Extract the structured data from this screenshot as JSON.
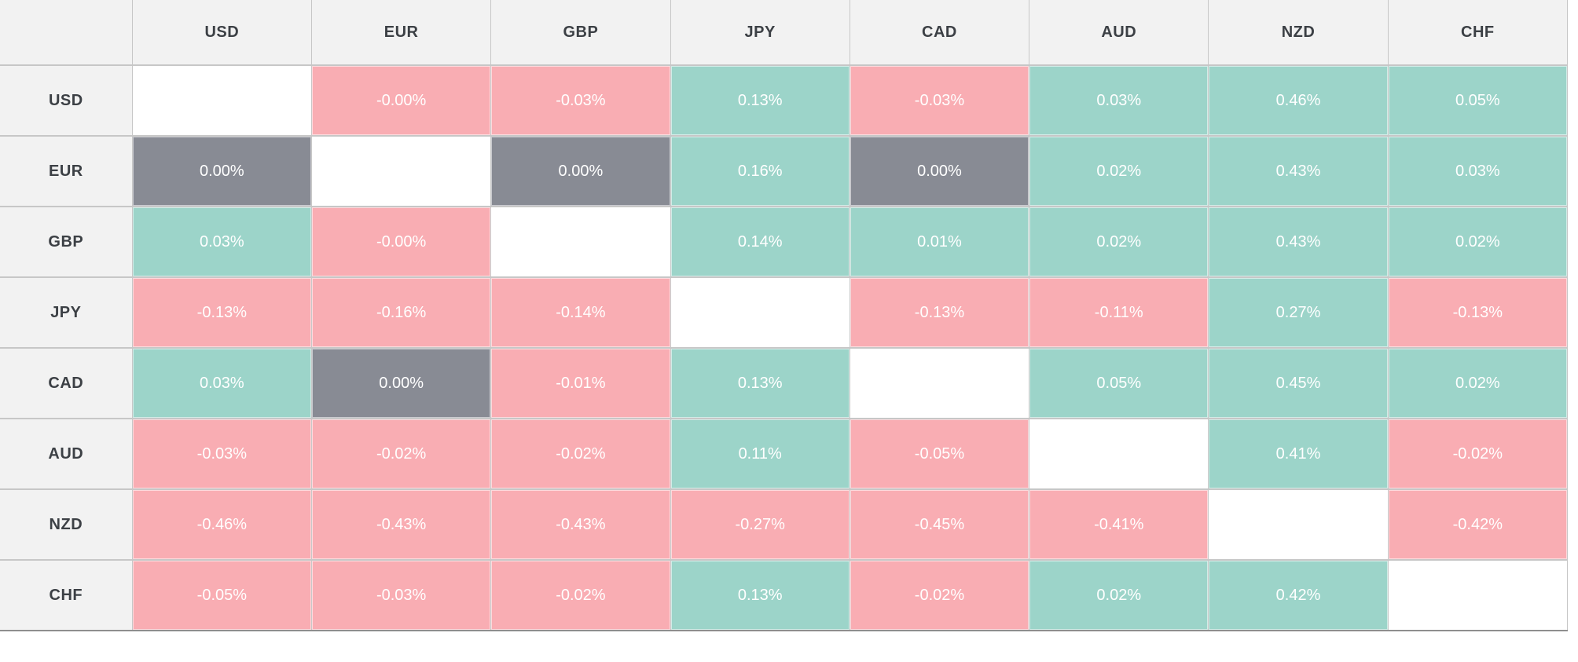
{
  "chart_data": {
    "type": "heatmap",
    "description": "Currency strength / percent-change matrix (row currency vs column currency)",
    "columns": [
      "USD",
      "EUR",
      "GBP",
      "JPY",
      "CAD",
      "AUD",
      "NZD",
      "CHF"
    ],
    "rows": [
      "USD",
      "EUR",
      "GBP",
      "JPY",
      "CAD",
      "AUD",
      "NZD",
      "CHF"
    ],
    "corner_label": "",
    "values": [
      [
        null,
        "-0.00%",
        "-0.03%",
        "0.13%",
        "-0.03%",
        "0.03%",
        "0.46%",
        "0.05%"
      ],
      [
        "0.00%",
        null,
        "0.00%",
        "0.16%",
        "0.00%",
        "0.02%",
        "0.43%",
        "0.03%"
      ],
      [
        "0.03%",
        "-0.00%",
        null,
        "0.14%",
        "0.01%",
        "0.02%",
        "0.43%",
        "0.02%"
      ],
      [
        "-0.13%",
        "-0.16%",
        "-0.14%",
        null,
        "-0.13%",
        "-0.11%",
        "0.27%",
        "-0.13%"
      ],
      [
        "0.03%",
        "0.00%",
        "-0.01%",
        "0.13%",
        null,
        "0.05%",
        "0.45%",
        "0.02%"
      ],
      [
        "-0.03%",
        "-0.02%",
        "-0.02%",
        "0.11%",
        "-0.05%",
        null,
        "0.41%",
        "-0.02%"
      ],
      [
        "-0.46%",
        "-0.43%",
        "-0.43%",
        "-0.27%",
        "-0.45%",
        "-0.41%",
        null,
        "-0.42%"
      ],
      [
        "-0.05%",
        "-0.03%",
        "-0.02%",
        "0.13%",
        "-0.02%",
        "0.02%",
        "0.42%",
        null
      ]
    ],
    "cell_color_rule": "negative values pink, positive values teal, exact 0.00% gray, diagonal blank white"
  },
  "colors": {
    "positive": "#9cd4c9",
    "negative": "#f9adb3",
    "zero": "#888b94",
    "self": "#ffffff",
    "header_bg": "#f2f2f2",
    "header_text": "#3c4045",
    "cell_text": "#ffffff",
    "gridline": "#c7c7c7",
    "bottom_rule": "#8e8e8e"
  }
}
